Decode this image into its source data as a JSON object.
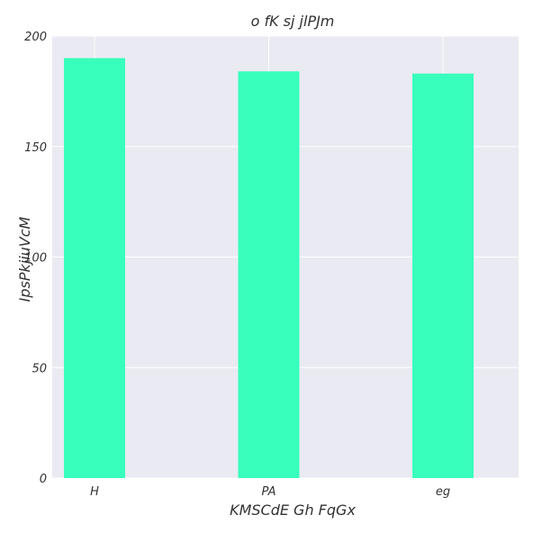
{
  "chart_data": {
    "type": "bar",
    "title": "o fK sj jlPJm",
    "xlabel": "KMSCdE Gh FqGx",
    "ylabel": "IpsPkjiuVcM",
    "categories": [
      "H",
      "PA",
      "eg"
    ],
    "values": [
      190,
      184,
      183
    ],
    "ylim": [
      0,
      200
    ],
    "yticks": [
      0,
      50,
      100,
      150,
      200
    ],
    "grid": true,
    "bar_color": "#38ffbb",
    "background_color": "#eaeaf2"
  }
}
